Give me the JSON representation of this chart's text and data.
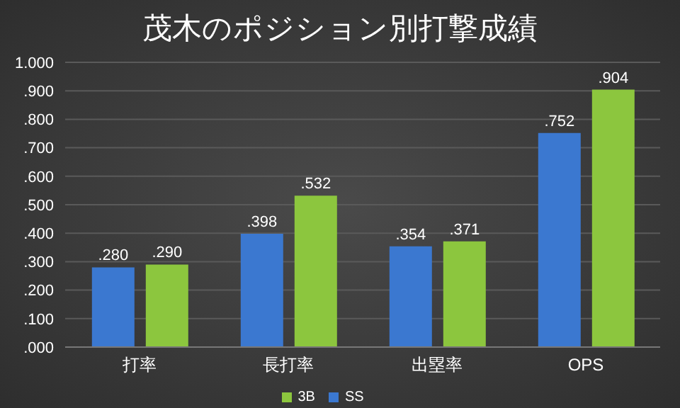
{
  "chart_data": {
    "type": "bar",
    "title": "茂木のポジション別打撃成績",
    "categories": [
      "打率",
      "長打率",
      "出塁率",
      "OPS"
    ],
    "series": [
      {
        "name": "SS",
        "color": "#3b78d0",
        "values": [
          0.28,
          0.398,
          0.354,
          0.752
        ],
        "value_labels": [
          ".280",
          ".398",
          ".354",
          ".752"
        ]
      },
      {
        "name": "3B",
        "color": "#8cc63e",
        "values": [
          0.29,
          0.532,
          0.371,
          0.904
        ],
        "value_labels": [
          ".290",
          ".532",
          ".371",
          ".904"
        ]
      }
    ],
    "ylim": [
      0,
      1
    ],
    "yticks": [
      {
        "value": 0,
        "label": ".000"
      },
      {
        "value": 0.1,
        "label": ".100"
      },
      {
        "value": 0.2,
        "label": ".200"
      },
      {
        "value": 0.3,
        "label": ".300"
      },
      {
        "value": 0.4,
        "label": ".400"
      },
      {
        "value": 0.5,
        "label": ".500"
      },
      {
        "value": 0.6,
        "label": ".600"
      },
      {
        "value": 0.7,
        "label": ".700"
      },
      {
        "value": 0.8,
        "label": ".800"
      },
      {
        "value": 0.9,
        "label": ".900"
      },
      {
        "value": 1,
        "label": "1.000"
      }
    ],
    "grid": "y",
    "legend": "bottom"
  }
}
